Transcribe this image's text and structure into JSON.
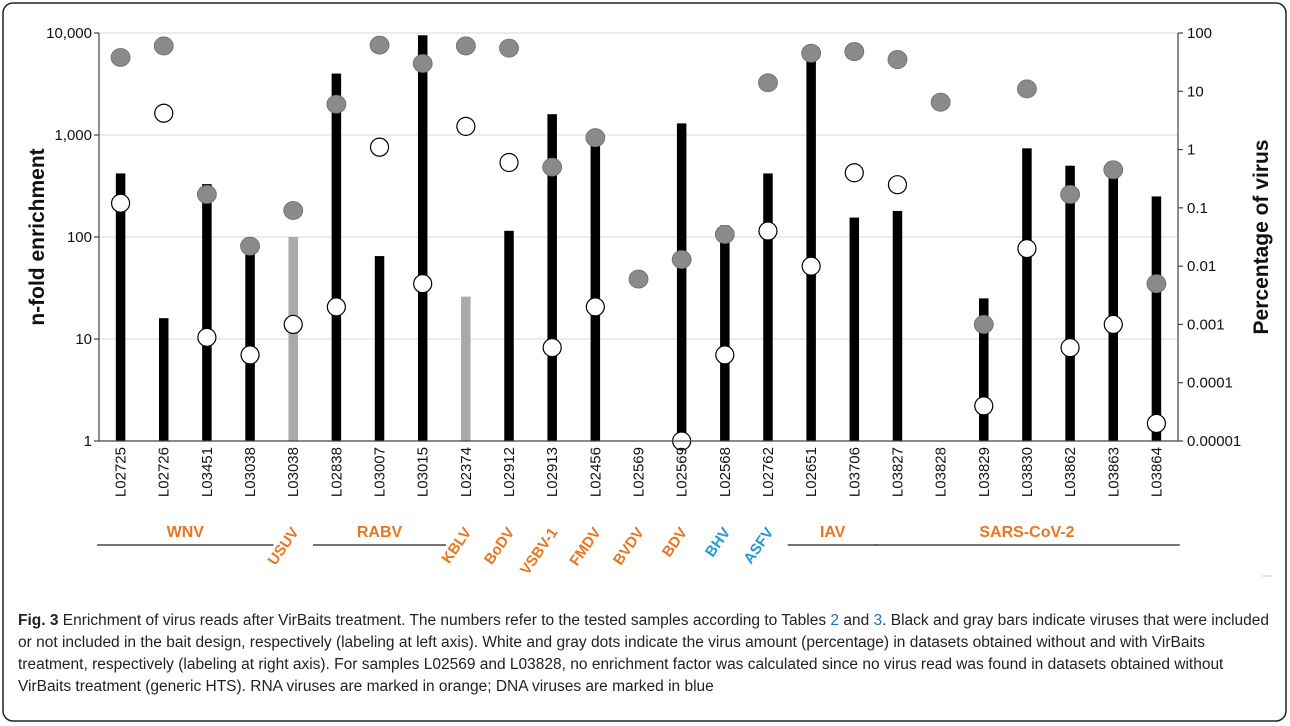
{
  "chart_data": {
    "type": "bar",
    "categories": [
      "L02725",
      "L02726",
      "L03451",
      "L03038",
      "L03038",
      "L02838",
      "L03007",
      "L03015",
      "L02374",
      "L02912",
      "L02913",
      "L02456",
      "L02569",
      "L02569",
      "L02568",
      "L02762",
      "L02651",
      "L03706",
      "L03827",
      "L03828",
      "L03829",
      "L03830",
      "L03862",
      "L03863",
      "L03864"
    ],
    "series": [
      {
        "values": [
          420,
          16,
          330,
          85,
          100,
          4000,
          65,
          9500,
          26,
          115,
          1600,
          900,
          null,
          1300,
          130,
          420,
          6800,
          155,
          180,
          null,
          25,
          740,
          500,
          480,
          250
        ],
        "colors": [
          "#000000",
          "#000000",
          "#000000",
          "#000000",
          "#a9a9a9",
          "#000000",
          "#000000",
          "#000000",
          "#a9a9a9",
          "#000000",
          "#000000",
          "#000000",
          "#000000",
          "#000000",
          "#000000",
          "#000000",
          "#000000",
          "#000000",
          "#000000",
          "#000000",
          "#000000",
          "#000000",
          "#000000",
          "#000000",
          "#000000"
        ],
        "axis": "left"
      },
      {
        "marker": "white-dot",
        "values": [
          0.12,
          4.2,
          0.0006,
          0.0003,
          0.001,
          0.002,
          1.1,
          0.005,
          2.5,
          0.6,
          0.0004,
          0.002,
          null,
          1e-05,
          0.0003,
          0.04,
          0.01,
          0.4,
          0.25,
          null,
          4e-05,
          0.02,
          0.0004,
          0.001,
          2e-05
        ],
        "axis": "right"
      },
      {
        "marker": "gray-dot",
        "values": [
          38,
          60,
          0.17,
          0.022,
          0.09,
          6,
          62,
          30,
          60,
          55,
          0.5,
          1.6,
          0.006,
          0.013,
          0.035,
          14,
          45,
          48,
          35,
          6.5,
          0.001,
          11,
          0.17,
          0.45,
          0.005
        ],
        "axis": "right"
      }
    ],
    "ylabel": "n-fold enrichment",
    "y2label": "Percentage of virus",
    "ylim": [
      1,
      10000
    ],
    "y2lim": [
      1e-05,
      100
    ],
    "yscale": "log",
    "y2scale": "log",
    "yticks": [
      1,
      10,
      100,
      1000,
      10000
    ],
    "ytick_labels": [
      "1",
      "10",
      "100",
      "1,000",
      "10,000"
    ],
    "y2ticks": [
      1e-05,
      0.0001,
      0.001,
      0.01,
      0.1,
      1,
      10,
      100
    ],
    "y2tick_labels": [
      "0.00001",
      "0.0001",
      "0.001",
      "0.01",
      "0.1",
      "1",
      "10",
      "100"
    ],
    "grid": "horizontal",
    "groups": [
      {
        "label": "WNV",
        "start": 0,
        "end": 3,
        "color": "#e8761e",
        "underline": true
      },
      {
        "label": "USUV",
        "start": 4,
        "end": 4,
        "color": "#e8761e",
        "underline": false
      },
      {
        "label": "RABV",
        "start": 5,
        "end": 7,
        "color": "#e8761e",
        "underline": true
      },
      {
        "label": "KBLV",
        "start": 8,
        "end": 8,
        "color": "#e8761e",
        "underline": false
      },
      {
        "label": "BoDV",
        "start": 9,
        "end": 9,
        "color": "#e8761e",
        "underline": false
      },
      {
        "label": "VSBV-1",
        "start": 10,
        "end": 10,
        "color": "#e8761e",
        "underline": false
      },
      {
        "label": "FMDV",
        "start": 11,
        "end": 11,
        "color": "#e8761e",
        "underline": false
      },
      {
        "label": "BVDV",
        "start": 12,
        "end": 12,
        "color": "#e8761e",
        "underline": false
      },
      {
        "label": "BDV",
        "start": 13,
        "end": 13,
        "color": "#e8761e",
        "underline": false
      },
      {
        "label": "BHV",
        "start": 14,
        "end": 14,
        "color": "#1f9ad6",
        "underline": false
      },
      {
        "label": "ASFV",
        "start": 15,
        "end": 15,
        "color": "#1f9ad6",
        "underline": false
      },
      {
        "label": "IAV",
        "start": 16,
        "end": 17,
        "color": "#e8761e",
        "underline": true
      },
      {
        "label": "SARS-CoV-2",
        "start": 18,
        "end": 24,
        "color": "#e8761e",
        "underline": true
      }
    ]
  },
  "caption": {
    "fig_label": "Fig. 3",
    "part1": "Enrichment of virus reads after VirBaits treatment. The numbers refer to the tested samples according to Tables ",
    "ref1": "2",
    "part2": " and ",
    "ref2": "3",
    "part3": ". Black and gray bars indicate viruses that were included or not included in the bait design, respectively (labeling at left axis). White and gray dots indicate the virus amount (percentage) in datasets obtained without and with VirBaits treatment, respectively (labeling at right axis). For samples L02569 and L03828, no enrichment factor was calculated since no virus read was found in datasets obtained without VirBaits treatment (generic HTS). RNA viruses are marked in orange; DNA viruses are marked in blue"
  }
}
